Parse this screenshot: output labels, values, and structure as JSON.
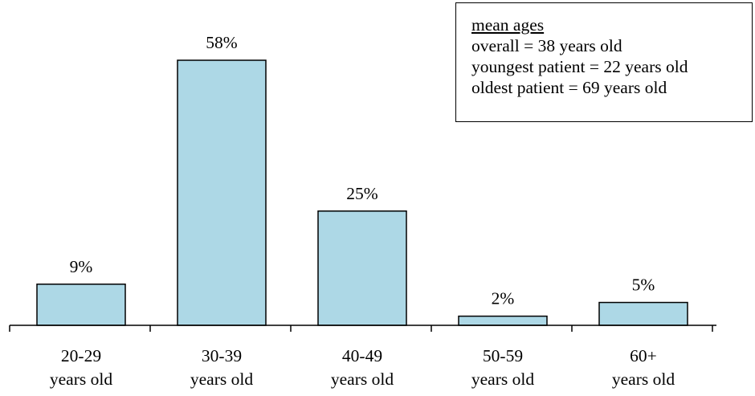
{
  "chart_data": {
    "type": "bar",
    "categories": [
      [
        "20-29",
        "years old"
      ],
      [
        "30-39",
        "years old"
      ],
      [
        "40-49",
        "years old"
      ],
      [
        "50-59",
        "years old"
      ],
      [
        "60+",
        "years old"
      ]
    ],
    "values": [
      9,
      58,
      25,
      2,
      5
    ],
    "data_labels": [
      "9%",
      "58%",
      "25%",
      "2%",
      "5%"
    ],
    "unit": "%",
    "ylim": [
      0,
      58
    ],
    "grid": false,
    "bar_color": "#add8e6",
    "bar_edge_color": "#000000",
    "title": "",
    "xlabel": "",
    "ylabel": ""
  },
  "annotation": {
    "title": "mean ages",
    "lines": [
      "overall = 38 years old",
      "youngest patient = 22 years old",
      "oldest patient = 69 years old"
    ],
    "placement": "top-right"
  }
}
